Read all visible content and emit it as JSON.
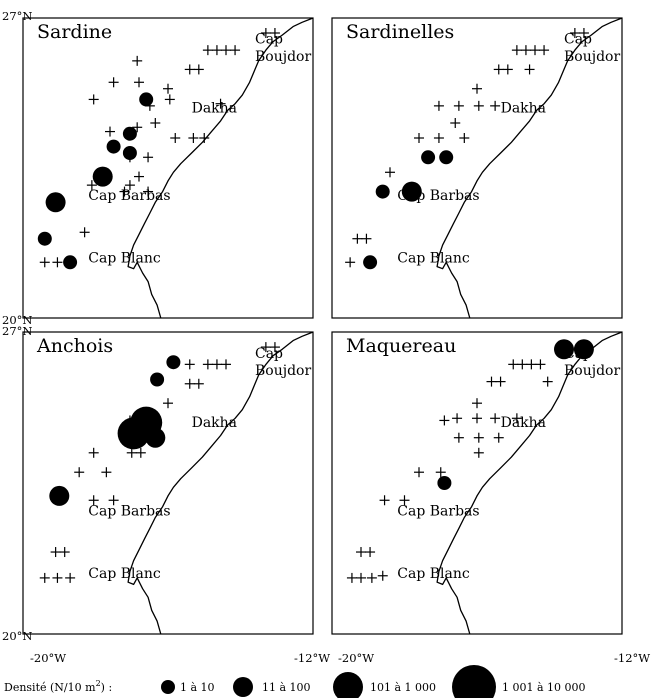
{
  "panels": [
    {
      "title": "Sardine",
      "place_labels": {
        "cap": "Cap",
        "boujdor": "Boujdor",
        "dakha": "Dakha",
        "cap_barbas": "Cap Barbas",
        "cap_blanc": "Cap Blanc"
      },
      "samples": [
        {
          "lon": -13.3,
          "lat": 26.65,
          "class": 0
        },
        {
          "lon": -13.05,
          "lat": 26.65,
          "class": 0
        },
        {
          "lon": -14.9,
          "lat": 26.25,
          "class": 0
        },
        {
          "lon": -14.65,
          "lat": 26.25,
          "class": 0
        },
        {
          "lon": -14.4,
          "lat": 26.25,
          "class": 0
        },
        {
          "lon": -14.15,
          "lat": 26.25,
          "class": 0
        },
        {
          "lon": -15.4,
          "lat": 25.8,
          "class": 0
        },
        {
          "lon": -15.15,
          "lat": 25.8,
          "class": 0
        },
        {
          "lon": -16.0,
          "lat": 25.35,
          "class": 0
        },
        {
          "lon": -14.55,
          "lat": 25.0,
          "class": 0
        },
        {
          "lon": -16.35,
          "lat": 24.55,
          "class": 0
        },
        {
          "lon": -15.8,
          "lat": 24.2,
          "class": 0
        },
        {
          "lon": -15.3,
          "lat": 24.2,
          "class": 0
        },
        {
          "lon": -15.0,
          "lat": 24.2,
          "class": 0
        },
        {
          "lon": -17.05,
          "lat": 23.75,
          "class": 0
        },
        {
          "lon": -16.55,
          "lat": 23.75,
          "class": 0
        },
        {
          "lon": -17.2,
          "lat": 22.95,
          "class": 0
        },
        {
          "lon": -16.8,
          "lat": 23.3,
          "class": 0
        },
        {
          "lon": -16.55,
          "lat": 22.95,
          "class": 0
        },
        {
          "lon": -18.3,
          "lat": 22.0,
          "class": 0
        },
        {
          "lon": -19.4,
          "lat": 21.3,
          "class": 0
        },
        {
          "lon": -19.05,
          "lat": 21.3,
          "class": 0
        },
        {
          "lon": -16.85,
          "lat": 26.0,
          "class": 0
        },
        {
          "lon": -16.5,
          "lat": 24.95,
          "class": 0
        },
        {
          "lon": -17.6,
          "lat": 24.35,
          "class": 0
        },
        {
          "lon": -17.05,
          "lat": 23.1,
          "class": 0
        },
        {
          "lon": -18.05,
          "lat": 25.1,
          "class": 0
        },
        {
          "lon": -16.85,
          "lat": 24.45,
          "class": 0
        },
        {
          "lon": -17.5,
          "lat": 25.5,
          "class": 0
        },
        {
          "lon": -16.8,
          "lat": 25.5,
          "class": 0
        },
        {
          "lon": -15.95,
          "lat": 25.1,
          "class": 0
        },
        {
          "lon": -18.1,
          "lat": 23.1,
          "class": 0
        },
        {
          "lon": -16.6,
          "lat": 25.1,
          "class": 1
        },
        {
          "lon": -17.05,
          "lat": 24.3,
          "class": 1
        },
        {
          "lon": -17.5,
          "lat": 24.0,
          "class": 1
        },
        {
          "lon": -17.05,
          "lat": 23.85,
          "class": 1
        },
        {
          "lon": -17.8,
          "lat": 23.3,
          "class": 2
        },
        {
          "lon": -19.1,
          "lat": 22.7,
          "class": 2
        },
        {
          "lon": -19.4,
          "lat": 21.85,
          "class": 1
        },
        {
          "lon": -18.7,
          "lat": 21.3,
          "class": 1
        }
      ]
    },
    {
      "title": "Sardinelles",
      "place_labels": {
        "cap": "Cap",
        "boujdor": "Boujdor",
        "dakha": "Dakha",
        "cap_barbas": "Cap Barbas",
        "cap_blanc": "Cap Blanc"
      },
      "samples": [
        {
          "lon": -13.3,
          "lat": 26.65,
          "class": 0
        },
        {
          "lon": -13.05,
          "lat": 26.65,
          "class": 0
        },
        {
          "lon": -14.9,
          "lat": 26.25,
          "class": 0
        },
        {
          "lon": -14.65,
          "lat": 26.25,
          "class": 0
        },
        {
          "lon": -14.4,
          "lat": 26.25,
          "class": 0
        },
        {
          "lon": -14.15,
          "lat": 26.25,
          "class": 0
        },
        {
          "lon": -15.4,
          "lat": 25.8,
          "class": 0
        },
        {
          "lon": -15.15,
          "lat": 25.8,
          "class": 0
        },
        {
          "lon": -14.55,
          "lat": 25.8,
          "class": 0
        },
        {
          "lon": -16.0,
          "lat": 25.35,
          "class": 0
        },
        {
          "lon": -16.5,
          "lat": 24.95,
          "class": 0
        },
        {
          "lon": -17.05,
          "lat": 24.95,
          "class": 0
        },
        {
          "lon": -15.95,
          "lat": 24.95,
          "class": 0
        },
        {
          "lon": -15.5,
          "lat": 24.95,
          "class": 0
        },
        {
          "lon": -16.6,
          "lat": 24.55,
          "class": 0
        },
        {
          "lon": -16.35,
          "lat": 24.2,
          "class": 0
        },
        {
          "lon": -17.05,
          "lat": 24.2,
          "class": 0
        },
        {
          "lon": -17.6,
          "lat": 24.2,
          "class": 0
        },
        {
          "lon": -18.4,
          "lat": 23.4,
          "class": 0
        },
        {
          "lon": -19.3,
          "lat": 21.85,
          "class": 0
        },
        {
          "lon": -19.05,
          "lat": 21.85,
          "class": 0
        },
        {
          "lon": -19.5,
          "lat": 21.3,
          "class": 0
        },
        {
          "lon": -16.85,
          "lat": 23.75,
          "class": 1
        },
        {
          "lon": -17.35,
          "lat": 23.75,
          "class": 1
        },
        {
          "lon": -18.6,
          "lat": 22.95,
          "class": 1
        },
        {
          "lon": -17.8,
          "lat": 22.95,
          "class": 2
        },
        {
          "lon": -18.95,
          "lat": 21.3,
          "class": 1
        }
      ]
    },
    {
      "title": "Anchois",
      "place_labels": {
        "cap": "Cap",
        "boujdor": "Boujdor",
        "dakha": "Dakha",
        "cap_barbas": "Cap Barbas",
        "cap_blanc": "Cap Blanc"
      },
      "samples": [
        {
          "lon": -13.3,
          "lat": 26.65,
          "class": 0
        },
        {
          "lon": -13.05,
          "lat": 26.65,
          "class": 0
        },
        {
          "lon": -15.4,
          "lat": 26.25,
          "class": 0
        },
        {
          "lon": -14.9,
          "lat": 26.25,
          "class": 0
        },
        {
          "lon": -14.65,
          "lat": 26.25,
          "class": 0
        },
        {
          "lon": -14.4,
          "lat": 26.25,
          "class": 0
        },
        {
          "lon": -15.4,
          "lat": 25.8,
          "class": 0
        },
        {
          "lon": -15.15,
          "lat": 25.8,
          "class": 0
        },
        {
          "lon": -16.0,
          "lat": 25.35,
          "class": 0
        },
        {
          "lon": -16.5,
          "lat": 24.95,
          "class": 0
        },
        {
          "lon": -16.3,
          "lat": 24.55,
          "class": 0
        },
        {
          "lon": -18.05,
          "lat": 24.2,
          "class": 0
        },
        {
          "lon": -16.75,
          "lat": 24.2,
          "class": 0
        },
        {
          "lon": -17.7,
          "lat": 23.75,
          "class": 0
        },
        {
          "lon": -18.45,
          "lat": 23.75,
          "class": 0
        },
        {
          "lon": -18.05,
          "lat": 23.1,
          "class": 0
        },
        {
          "lon": -17.5,
          "lat": 23.1,
          "class": 0
        },
        {
          "lon": -19.1,
          "lat": 21.9,
          "class": 0
        },
        {
          "lon": -18.85,
          "lat": 21.9,
          "class": 0
        },
        {
          "lon": -19.4,
          "lat": 21.3,
          "class": 0
        },
        {
          "lon": -19.05,
          "lat": 21.3,
          "class": 0
        },
        {
          "lon": -18.7,
          "lat": 21.3,
          "class": 0
        },
        {
          "lon": -17.05,
          "lat": 24.95,
          "class": 0
        },
        {
          "lon": -17.0,
          "lat": 24.2,
          "class": 0
        },
        {
          "lon": -15.85,
          "lat": 26.3,
          "class": 1
        },
        {
          "lon": -16.3,
          "lat": 25.9,
          "class": 1
        },
        {
          "lon": -16.6,
          "lat": 24.9,
          "class": 3
        },
        {
          "lon": -16.35,
          "lat": 24.55,
          "class": 2
        },
        {
          "lon": -16.95,
          "lat": 24.65,
          "class": 3
        },
        {
          "lon": -19.0,
          "lat": 23.2,
          "class": 2
        }
      ]
    },
    {
      "title": "Maquereau",
      "place_labels": {
        "cap": "Cap",
        "boujdor": "Boujdor",
        "dakha": "Dakha",
        "cap_barbas": "Cap Barbas",
        "cap_blanc": "Cap Blanc"
      },
      "samples": [
        {
          "lon": -15.0,
          "lat": 26.25,
          "class": 0
        },
        {
          "lon": -14.75,
          "lat": 26.25,
          "class": 0
        },
        {
          "lon": -14.5,
          "lat": 26.25,
          "class": 0
        },
        {
          "lon": -14.25,
          "lat": 26.25,
          "class": 0
        },
        {
          "lon": -15.6,
          "lat": 25.85,
          "class": 0
        },
        {
          "lon": -15.35,
          "lat": 25.85,
          "class": 0
        },
        {
          "lon": -14.05,
          "lat": 25.85,
          "class": 0
        },
        {
          "lon": -16.0,
          "lat": 25.35,
          "class": 0
        },
        {
          "lon": -16.55,
          "lat": 25.0,
          "class": 0
        },
        {
          "lon": -16.0,
          "lat": 25.0,
          "class": 0
        },
        {
          "lon": -15.5,
          "lat": 25.0,
          "class": 0
        },
        {
          "lon": -14.9,
          "lat": 25.0,
          "class": 0
        },
        {
          "lon": -16.5,
          "lat": 24.55,
          "class": 0
        },
        {
          "lon": -15.95,
          "lat": 24.55,
          "class": 0
        },
        {
          "lon": -15.4,
          "lat": 24.55,
          "class": 0
        },
        {
          "lon": -16.9,
          "lat": 24.95,
          "class": 0
        },
        {
          "lon": -15.95,
          "lat": 24.2,
          "class": 0
        },
        {
          "lon": -17.6,
          "lat": 23.75,
          "class": 0
        },
        {
          "lon": -17.0,
          "lat": 23.75,
          "class": 0
        },
        {
          "lon": -18.0,
          "lat": 23.1,
          "class": 0
        },
        {
          "lon": -18.55,
          "lat": 23.1,
          "class": 0
        },
        {
          "lon": -18.95,
          "lat": 21.9,
          "class": 0
        },
        {
          "lon": -19.2,
          "lat": 21.9,
          "class": 0
        },
        {
          "lon": -19.45,
          "lat": 21.3,
          "class": 0
        },
        {
          "lon": -19.2,
          "lat": 21.3,
          "class": 0
        },
        {
          "lon": -18.9,
          "lat": 21.3,
          "class": 0
        },
        {
          "lon": -18.6,
          "lat": 21.35,
          "class": 0
        },
        {
          "lon": -13.6,
          "lat": 26.6,
          "class": 2
        },
        {
          "lon": -13.05,
          "lat": 26.6,
          "class": 2
        },
        {
          "lon": -16.9,
          "lat": 23.5,
          "class": 1
        }
      ]
    }
  ],
  "axes": {
    "lat_top_label": "27°N",
    "lat_bottom_label": "20°N",
    "lon_left_label": "-20°W",
    "lon_right_label": "-12°W",
    "lon_range": [
      -20,
      -12
    ],
    "lat_range": [
      20,
      27
    ]
  },
  "legend": {
    "title_prefix": "Densité (N/10 m",
    "title_sup": "2",
    "title_suffix": ") :",
    "classes": [
      "1 à 10",
      "11 à 100",
      "101 à 1 000",
      "1 001 à 10 000"
    ]
  },
  "coastline": [
    [
      -12.0,
      27.0
    ],
    [
      -12.3,
      26.9
    ],
    [
      -12.55,
      26.8
    ],
    [
      -12.85,
      26.6
    ],
    [
      -13.1,
      26.45
    ],
    [
      -13.3,
      26.25
    ],
    [
      -13.5,
      26.0
    ],
    [
      -13.6,
      25.8
    ],
    [
      -13.75,
      25.5
    ],
    [
      -13.95,
      25.2
    ],
    [
      -14.15,
      25.0
    ],
    [
      -14.35,
      24.85
    ],
    [
      -14.55,
      24.6
    ],
    [
      -14.8,
      24.35
    ],
    [
      -15.05,
      24.1
    ],
    [
      -15.35,
      23.85
    ],
    [
      -15.65,
      23.6
    ],
    [
      -15.85,
      23.4
    ],
    [
      -16.0,
      23.2
    ],
    [
      -16.15,
      22.95
    ],
    [
      -16.35,
      22.7
    ],
    [
      -16.5,
      22.45
    ],
    [
      -16.65,
      22.2
    ],
    [
      -16.8,
      21.95
    ],
    [
      -16.95,
      21.7
    ],
    [
      -17.05,
      21.45
    ],
    [
      -17.1,
      21.2
    ],
    [
      -16.95,
      21.15
    ],
    [
      -16.85,
      21.3
    ],
    [
      -16.7,
      21.05
    ],
    [
      -16.55,
      20.85
    ],
    [
      -16.45,
      20.55
    ],
    [
      -16.3,
      20.3
    ],
    [
      -16.2,
      20.0
    ]
  ]
}
